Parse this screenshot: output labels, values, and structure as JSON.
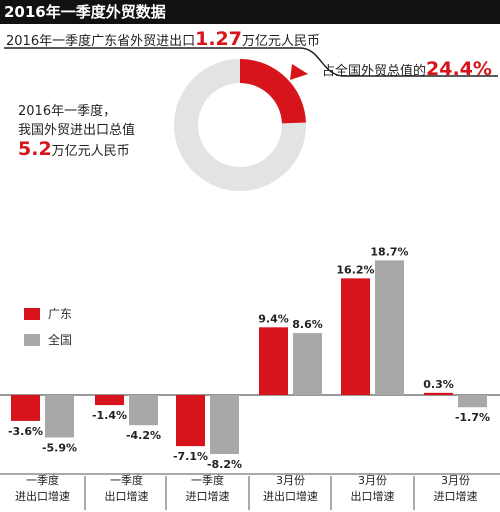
{
  "header": {
    "title": "2016年一季度外贸数据"
  },
  "summary": {
    "gd_prefix": "2016年一季度广东省外贸进出口",
    "gd_value": "1.27",
    "gd_unit": "万亿元人民币",
    "share_prefix": "占全国外贸总值的",
    "share_value": "24.4%",
    "nat_line1": "2016年一季度，",
    "nat_line2": "我国外贸进出口总值",
    "nat_value": "5.2",
    "nat_unit": "万亿元人民币"
  },
  "colors": {
    "guangdong": "#d7141c",
    "national": "#a8a8a8",
    "donut_track": "#e3e3e3"
  },
  "donut": {
    "share_percent": 24.4
  },
  "chart_data": {
    "type": "bar",
    "categories": [
      [
        "一季度",
        "进出口增速"
      ],
      [
        "一季度",
        "出口增速"
      ],
      [
        "一季度",
        "进口增速"
      ],
      [
        "3月份",
        "进出口增速"
      ],
      [
        "3月份",
        "出口增速"
      ],
      [
        "3月份",
        "进口增速"
      ]
    ],
    "series": [
      {
        "name": "广东",
        "values": [
          -3.6,
          -1.4,
          -7.1,
          9.4,
          16.2,
          0.3
        ]
      },
      {
        "name": "全国",
        "values": [
          -5.9,
          -4.2,
          -8.2,
          8.6,
          18.7,
          -1.7
        ]
      }
    ],
    "value_labels": {
      "广东": [
        "-3.6%",
        "-1.4%",
        "-7.1%",
        "9.4%",
        "16.2%",
        "0.3%"
      ],
      "全国": [
        "-5.9%",
        "-4.2%",
        "-8.2%",
        "8.6%",
        "18.7%",
        "-1.7%"
      ]
    },
    "unit": "%",
    "ylim": [
      -9,
      19
    ],
    "legend_position": "left",
    "grid": false
  }
}
